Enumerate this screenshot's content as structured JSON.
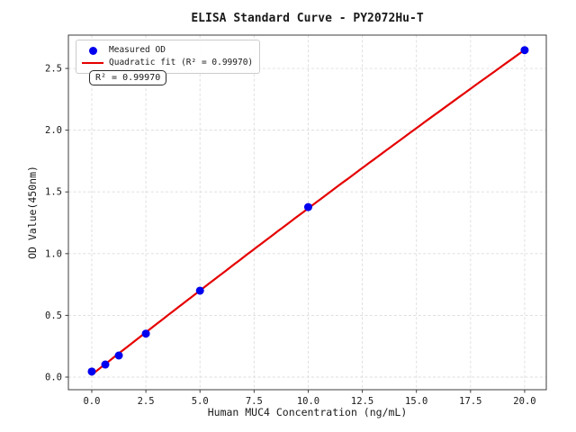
{
  "figure": {
    "background": "#ffffff"
  },
  "chart_data": {
    "type": "scatter",
    "title": "ELISA Standard Curve - PY2072Hu-T",
    "xlabel": "Human MUC4 Concentration (ng/mL)",
    "ylabel": "OD Value(450nm)",
    "xlim": [
      -1.08,
      21.0
    ],
    "ylim": [
      -0.102,
      2.77
    ],
    "xticks": [
      0.0,
      2.5,
      5.0,
      7.5,
      10.0,
      12.5,
      15.0,
      17.5,
      20.0
    ],
    "xtick_labels": [
      "0.0",
      "2.5",
      "5.0",
      "7.5",
      "10.0",
      "12.5",
      "15.0",
      "17.5",
      "20.0"
    ],
    "yticks": [
      0.0,
      0.5,
      1.0,
      1.5,
      2.0,
      2.5
    ],
    "ytick_labels": [
      "0.0",
      "0.5",
      "1.0",
      "1.5",
      "2.0",
      "2.5"
    ],
    "grid": true,
    "grid_style": "dashed",
    "legend_position": "upper left",
    "series": [
      {
        "name": "Measured OD",
        "type": "scatter",
        "marker": "circle",
        "color": "#0000ee",
        "x": [
          0,
          0.625,
          1.25,
          2.5,
          5,
          10,
          20
        ],
        "y": [
          0.045,
          0.102,
          0.175,
          0.352,
          0.7,
          1.377,
          2.648
        ]
      },
      {
        "name": "Quadratic fit (R² = 0.99970)",
        "type": "line",
        "fit": "quadratic",
        "color": "#e50000",
        "r_squared": 0.9997,
        "x_range": [
          0,
          20
        ]
      }
    ],
    "annotation": "R² = 0.99970",
    "colors": {
      "marker": "#0000ee",
      "line": "#e50000",
      "grid": "#dcdcdc",
      "spine": "#3c3c3c",
      "text": "#1a1a1a"
    }
  }
}
